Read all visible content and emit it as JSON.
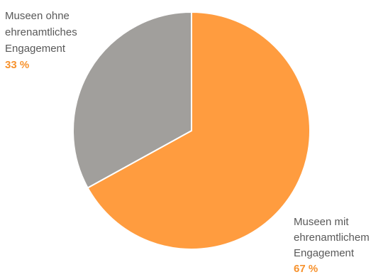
{
  "chart_data": {
    "type": "pie",
    "title": "",
    "slices": [
      {
        "label": [
          "Museen mit",
          "ehrenamtlichem",
          "Engagement"
        ],
        "value": 67,
        "value_label": "67 %",
        "color": "#ff9c3f"
      },
      {
        "label": [
          "Museen ohne",
          "ehrenamtliches",
          "Engagement"
        ],
        "value": 33,
        "value_label": "33 %",
        "color": "#a19f9c"
      }
    ],
    "start": "12 o'clock",
    "direction": "clockwise",
    "value_color": "#f7922d"
  }
}
